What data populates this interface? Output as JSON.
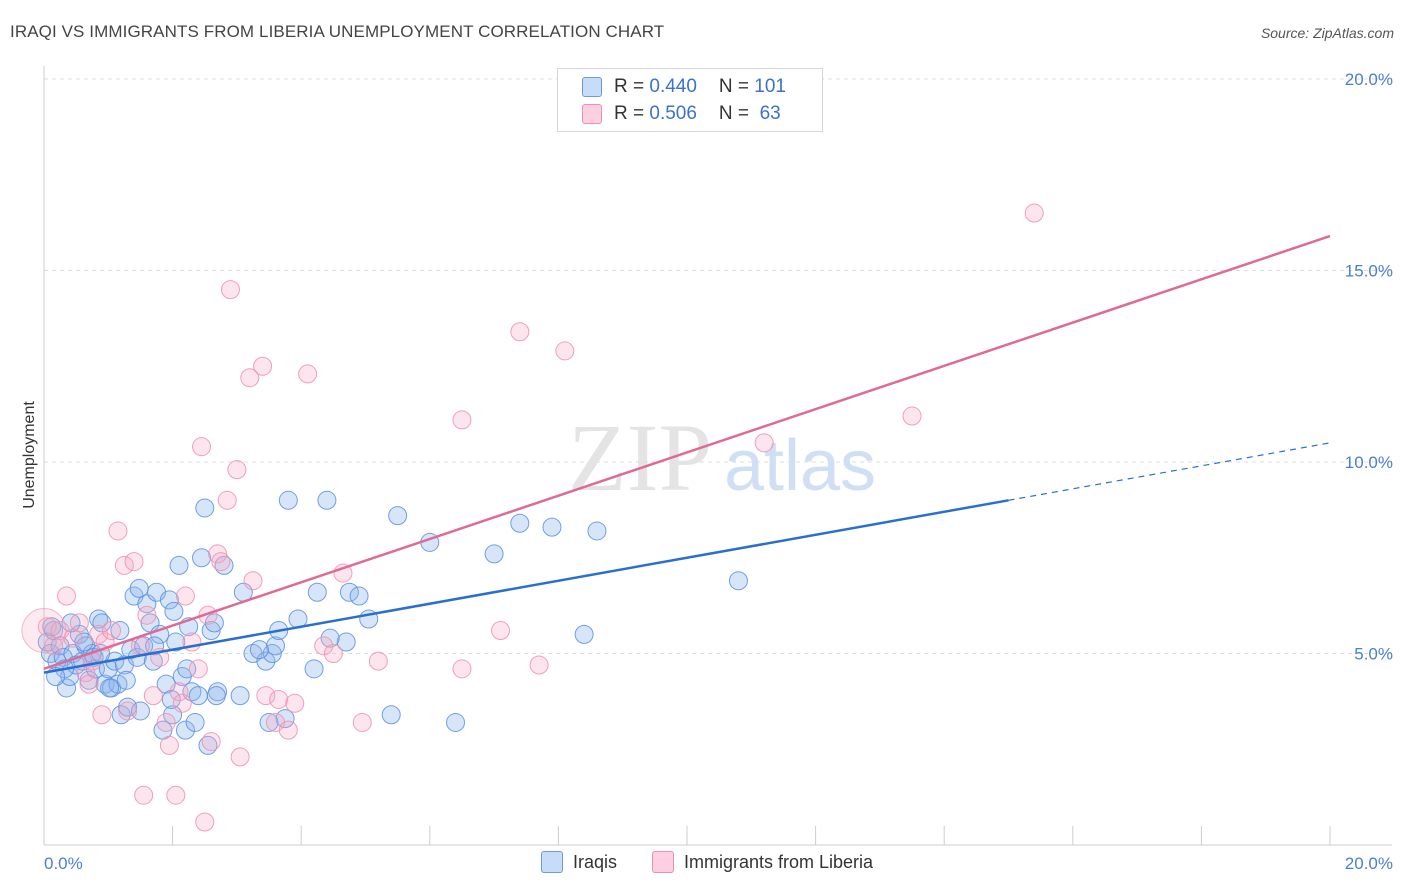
{
  "title": "IRAQI VS IMMIGRANTS FROM LIBERIA UNEMPLOYMENT CORRELATION CHART",
  "source": "Source: ZipAtlas.com",
  "watermark": {
    "zip": "ZIP",
    "atlas": "atlas"
  },
  "legend": {
    "rows": [
      {
        "r_label": "R = ",
        "r_value": "0.440",
        "n_label": "N = ",
        "n_value": "101"
      },
      {
        "r_label": "R = ",
        "r_value": "0.506",
        "n_label": "N = ",
        "n_value": " 63"
      }
    ]
  },
  "bottom_legend": {
    "series1": "Iraqis",
    "series2": "Immigrants from Liberia"
  },
  "chart_data": {
    "type": "scatter",
    "title": "IRAQI VS IMMIGRANTS FROM LIBERIA UNEMPLOYMENT CORRELATION CHART",
    "xlabel": "",
    "ylabel": "Unemployment",
    "xlim": [
      0,
      20
    ],
    "ylim": [
      0,
      20
    ],
    "x_tick_labels": [
      "0.0%",
      "20.0%"
    ],
    "y_ticks": [
      5,
      10,
      15,
      20
    ],
    "y_tick_labels": [
      "5.0%",
      "10.0%",
      "15.0%",
      "20.0%"
    ],
    "colors": {
      "Iraqis": "#5b8fe0",
      "Immigrants from Liberia": "#ef8fb0",
      "blue_line": "#2a6fd0",
      "pink_line": "#e06a95"
    },
    "series": [
      {
        "name": "Iraqis",
        "r": 0.44,
        "n": 101,
        "trend": {
          "x0": 0,
          "y0": 4.5,
          "x1": 15.0,
          "y1": 9.0,
          "dash_to_x": 20.0,
          "dash_to_y": 10.5
        },
        "points": [
          [
            0.05,
            5.3
          ],
          [
            0.1,
            5.0
          ],
          [
            0.15,
            5.6
          ],
          [
            0.2,
            4.8
          ],
          [
            0.25,
            5.2
          ],
          [
            0.3,
            4.9
          ],
          [
            0.35,
            4.1
          ],
          [
            0.4,
            4.4
          ],
          [
            0.45,
            5.0
          ],
          [
            0.5,
            4.7
          ],
          [
            0.55,
            5.5
          ],
          [
            0.6,
            4.8
          ],
          [
            0.65,
            5.2
          ],
          [
            0.7,
            4.3
          ],
          [
            0.75,
            5.0
          ],
          [
            0.8,
            4.6
          ],
          [
            0.85,
            5.9
          ],
          [
            0.9,
            5.8
          ],
          [
            0.95,
            4.2
          ],
          [
            1.0,
            4.6
          ],
          [
            1.05,
            4.1
          ],
          [
            1.1,
            4.8
          ],
          [
            1.15,
            4.2
          ],
          [
            1.2,
            3.4
          ],
          [
            1.25,
            4.7
          ],
          [
            1.3,
            3.6
          ],
          [
            1.35,
            5.1
          ],
          [
            1.4,
            6.5
          ],
          [
            1.45,
            4.9
          ],
          [
            1.5,
            3.5
          ],
          [
            1.55,
            5.2
          ],
          [
            1.6,
            6.3
          ],
          [
            1.65,
            5.8
          ],
          [
            1.7,
            4.8
          ],
          [
            1.75,
            6.6
          ],
          [
            1.8,
            5.5
          ],
          [
            1.85,
            3.0
          ],
          [
            1.9,
            4.2
          ],
          [
            1.95,
            6.4
          ],
          [
            2.0,
            3.4
          ],
          [
            2.05,
            5.3
          ],
          [
            2.1,
            7.3
          ],
          [
            2.15,
            4.4
          ],
          [
            2.2,
            3.0
          ],
          [
            2.25,
            5.7
          ],
          [
            2.3,
            4.0
          ],
          [
            2.35,
            3.2
          ],
          [
            2.4,
            3.9
          ],
          [
            2.45,
            7.5
          ],
          [
            2.5,
            8.8
          ],
          [
            2.55,
            2.6
          ],
          [
            2.6,
            5.6
          ],
          [
            2.65,
            5.8
          ],
          [
            2.7,
            4.0
          ],
          [
            2.8,
            7.3
          ],
          [
            3.05,
            3.9
          ],
          [
            3.1,
            6.6
          ],
          [
            3.25,
            5.0
          ],
          [
            3.45,
            4.8
          ],
          [
            3.5,
            3.2
          ],
          [
            3.55,
            5.0
          ],
          [
            3.6,
            5.2
          ],
          [
            3.65,
            5.6
          ],
          [
            3.75,
            3.3
          ],
          [
            3.8,
            9.0
          ],
          [
            3.95,
            5.9
          ],
          [
            4.2,
            4.6
          ],
          [
            4.25,
            6.6
          ],
          [
            4.4,
            9.0
          ],
          [
            4.7,
            5.3
          ],
          [
            4.75,
            6.6
          ],
          [
            4.9,
            6.5
          ],
          [
            5.05,
            5.9
          ],
          [
            5.4,
            3.4
          ],
          [
            5.5,
            8.6
          ],
          [
            6.0,
            7.9
          ],
          [
            6.4,
            3.2
          ],
          [
            7.0,
            7.6
          ],
          [
            7.4,
            8.4
          ],
          [
            7.9,
            8.3
          ],
          [
            8.4,
            5.5
          ],
          [
            8.6,
            8.2
          ],
          [
            10.8,
            6.9
          ],
          [
            0.12,
            5.7
          ],
          [
            0.32,
            4.6
          ],
          [
            0.62,
            5.3
          ],
          [
            0.78,
            4.9
          ],
          [
            1.02,
            4.1
          ],
          [
            1.18,
            5.6
          ],
          [
            1.48,
            6.7
          ],
          [
            1.72,
            5.2
          ],
          [
            1.98,
            3.8
          ],
          [
            2.22,
            4.6
          ],
          [
            2.68,
            3.9
          ],
          [
            3.35,
            5.1
          ],
          [
            4.45,
            5.4
          ],
          [
            0.18,
            4.4
          ],
          [
            0.42,
            5.8
          ],
          [
            0.88,
            5.0
          ],
          [
            1.28,
            4.3
          ],
          [
            2.02,
            6.1
          ]
        ]
      },
      {
        "name": "Immigrants from Liberia",
        "r": 0.506,
        "n": 63,
        "trend": {
          "x0": 0,
          "y0": 4.6,
          "x1": 20.0,
          "y1": 15.9
        },
        "points": [
          [
            0.05,
            5.7
          ],
          [
            0.15,
            5.2
          ],
          [
            0.25,
            5.6
          ],
          [
            0.35,
            6.5
          ],
          [
            0.45,
            5.4
          ],
          [
            0.55,
            5.8
          ],
          [
            0.65,
            4.5
          ],
          [
            0.7,
            4.2
          ],
          [
            0.75,
            4.8
          ],
          [
            0.85,
            5.5
          ],
          [
            0.95,
            5.3
          ],
          [
            1.05,
            5.6
          ],
          [
            1.15,
            8.2
          ],
          [
            1.25,
            7.3
          ],
          [
            1.3,
            3.5
          ],
          [
            1.4,
            7.4
          ],
          [
            1.5,
            5.2
          ],
          [
            1.55,
            1.3
          ],
          [
            1.6,
            6.0
          ],
          [
            1.7,
            3.9
          ],
          [
            1.8,
            4.9
          ],
          [
            1.9,
            3.2
          ],
          [
            1.95,
            2.6
          ],
          [
            2.05,
            1.3
          ],
          [
            2.1,
            4.0
          ],
          [
            2.15,
            3.7
          ],
          [
            2.2,
            6.5
          ],
          [
            2.3,
            5.3
          ],
          [
            2.4,
            4.6
          ],
          [
            2.45,
            10.4
          ],
          [
            2.5,
            0.6
          ],
          [
            2.55,
            6.0
          ],
          [
            2.6,
            2.7
          ],
          [
            2.7,
            7.6
          ],
          [
            2.75,
            7.4
          ],
          [
            2.85,
            9.0
          ],
          [
            2.9,
            14.5
          ],
          [
            3.0,
            9.8
          ],
          [
            3.05,
            2.3
          ],
          [
            3.2,
            12.2
          ],
          [
            3.25,
            6.9
          ],
          [
            3.4,
            12.5
          ],
          [
            3.45,
            3.9
          ],
          [
            3.6,
            3.2
          ],
          [
            3.65,
            3.8
          ],
          [
            3.8,
            3.0
          ],
          [
            3.9,
            3.7
          ],
          [
            4.1,
            12.3
          ],
          [
            4.35,
            5.2
          ],
          [
            4.5,
            5.0
          ],
          [
            4.65,
            7.1
          ],
          [
            4.95,
            3.2
          ],
          [
            5.2,
            4.8
          ],
          [
            6.5,
            4.6
          ],
          [
            6.5,
            11.1
          ],
          [
            7.1,
            5.6
          ],
          [
            7.4,
            13.4
          ],
          [
            7.7,
            4.7
          ],
          [
            8.1,
            12.9
          ],
          [
            11.2,
            10.5
          ],
          [
            13.5,
            11.2
          ],
          [
            15.4,
            16.5
          ],
          [
            0.9,
            3.4
          ]
        ]
      }
    ]
  }
}
